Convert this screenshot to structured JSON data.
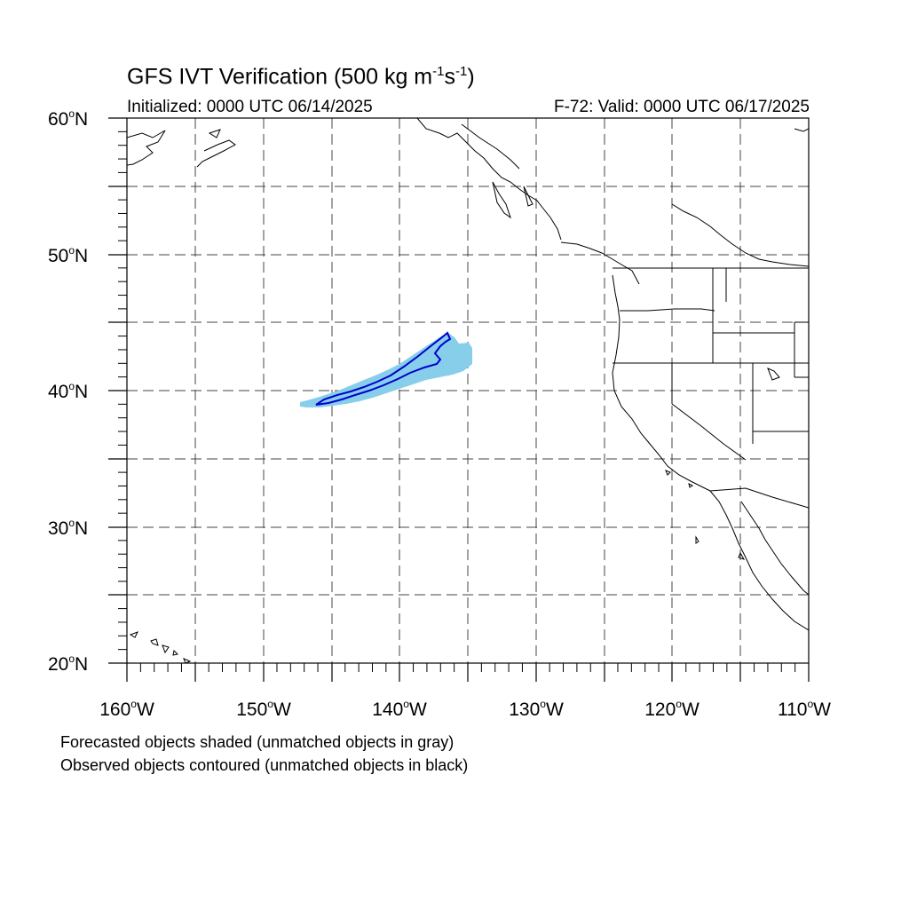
{
  "title": {
    "prefix": "GFS IVT Verification (500 kg m",
    "exp1": "-1",
    "mid": "s",
    "exp2": "-1",
    "suffix": ")"
  },
  "initialized": "Initialized: 0000 UTC 06/14/2025",
  "valid": "F-72: Valid: 0000 UTC 06/17/2025",
  "lat_labels": [
    "60",
    "50",
    "40",
    "30",
    "20"
  ],
  "lat_suffix": "N",
  "lon_labels": [
    "160",
    "150",
    "140",
    "130",
    "120",
    "110"
  ],
  "lon_suffix": "W",
  "degree_symbol": "o",
  "legend": {
    "forecast": "Forecasted objects shaded (unmatched objects in gray)",
    "observed": "Observed objects contoured (unmatched objects in black)"
  },
  "colors": {
    "forecast_fill": "#87ceeb",
    "observed_contour": "#0000cd",
    "coastline": "#000000",
    "gridline": "#444444"
  }
}
